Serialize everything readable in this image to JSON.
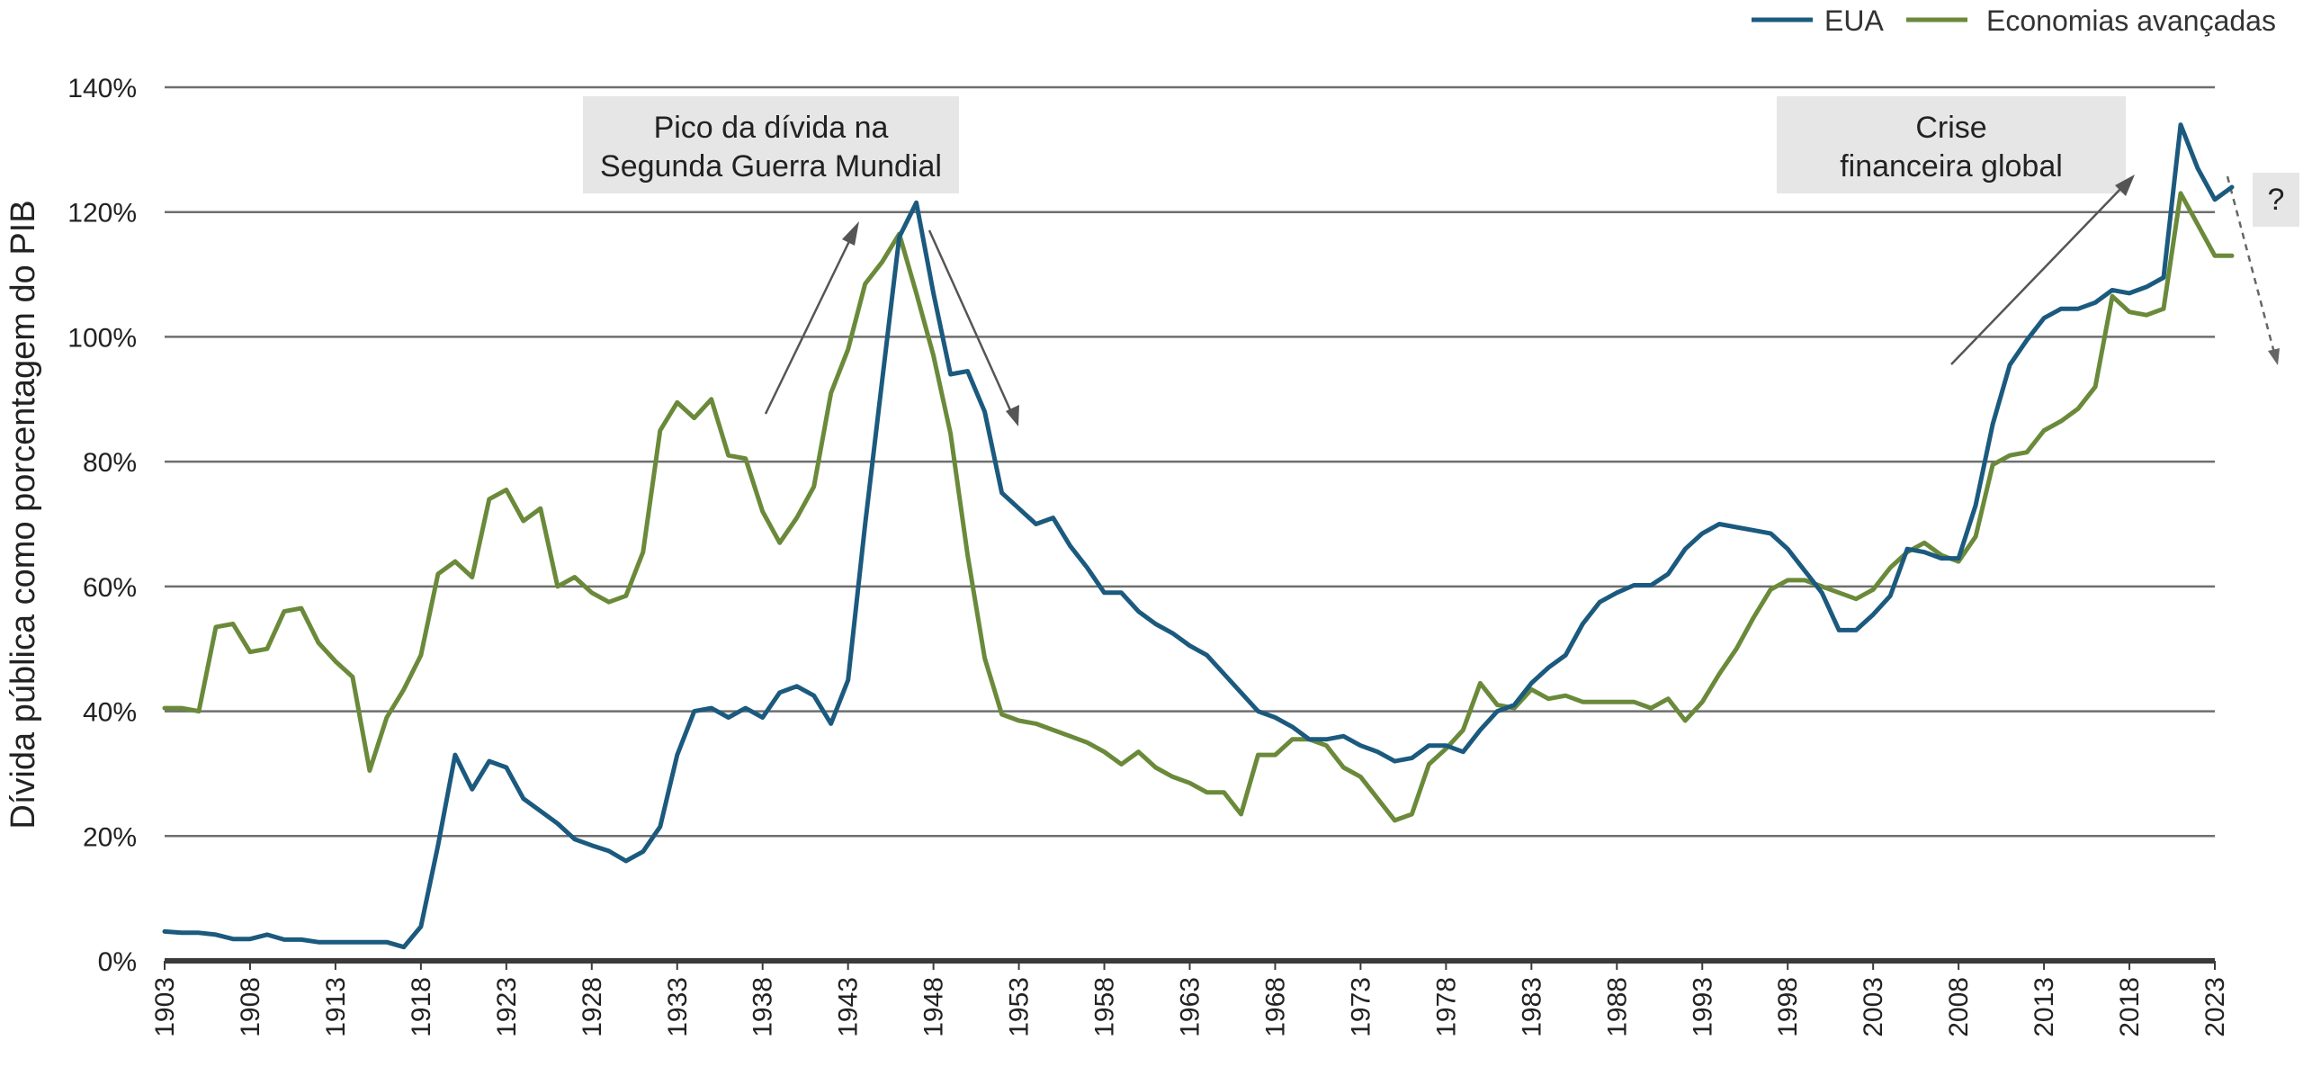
{
  "chart_data": {
    "type": "line",
    "ylabel": "Dívida pública como porcentagem do PIB",
    "xlabel": "",
    "ylim": [
      0,
      140
    ],
    "xlim": [
      1903,
      2023
    ],
    "y_ticks": [
      0,
      20,
      40,
      60,
      80,
      100,
      120,
      140
    ],
    "y_tick_labels": [
      "0%",
      "20%",
      "40%",
      "60%",
      "80%",
      "100%",
      "120%",
      "140%"
    ],
    "x_ticks": [
      1903,
      1908,
      1913,
      1918,
      1923,
      1928,
      1933,
      1938,
      1943,
      1948,
      1953,
      1958,
      1963,
      1968,
      1973,
      1978,
      1983,
      1988,
      1993,
      1998,
      2003,
      2008,
      2013,
      2018,
      2023
    ],
    "grid": "horizontal",
    "legend_position": "top-right",
    "series": [
      {
        "name": "EUA",
        "color": "#1b5a7e",
        "points": [
          [
            1903,
            4.7
          ],
          [
            1904,
            4.5
          ],
          [
            1905,
            4.5
          ],
          [
            1906,
            4.2
          ],
          [
            1907,
            3.5
          ],
          [
            1908,
            3.5
          ],
          [
            1909,
            4.2
          ],
          [
            1910,
            3.4
          ],
          [
            1911,
            3.4
          ],
          [
            1912,
            3.0
          ],
          [
            1913,
            3.0
          ],
          [
            1914,
            3.0
          ],
          [
            1915,
            3.0
          ],
          [
            1916,
            3.0
          ],
          [
            1917,
            2.2
          ],
          [
            1918,
            5.5
          ],
          [
            1919,
            18.5
          ],
          [
            1920,
            33.0
          ],
          [
            1921,
            27.5
          ],
          [
            1922,
            32.0
          ],
          [
            1923,
            31.0
          ],
          [
            1924,
            26.0
          ],
          [
            1925,
            24.0
          ],
          [
            1926,
            22.0
          ],
          [
            1927,
            19.5
          ],
          [
            1928,
            18.5
          ],
          [
            1929,
            17.6
          ],
          [
            1930,
            16.0
          ],
          [
            1931,
            17.5
          ],
          [
            1932,
            21.5
          ],
          [
            1933,
            33.0
          ],
          [
            1934,
            40.0
          ],
          [
            1935,
            40.5
          ],
          [
            1936,
            39.0
          ],
          [
            1937,
            40.5
          ],
          [
            1938,
            39.0
          ],
          [
            1939,
            43.0
          ],
          [
            1940,
            44.0
          ],
          [
            1941,
            42.5
          ],
          [
            1942,
            38.0
          ],
          [
            1943,
            45.0
          ],
          [
            1944,
            70.0
          ],
          [
            1945,
            93.0
          ],
          [
            1946,
            116.0
          ],
          [
            1947,
            121.5
          ],
          [
            1948,
            107.0
          ],
          [
            1949,
            94.0
          ],
          [
            1950,
            94.5
          ],
          [
            1951,
            88.0
          ],
          [
            1952,
            75.0
          ],
          [
            1953,
            72.5
          ],
          [
            1954,
            70.0
          ],
          [
            1955,
            71.0
          ],
          [
            1956,
            66.5
          ],
          [
            1957,
            63.0
          ],
          [
            1958,
            59.0
          ],
          [
            1959,
            59.0
          ],
          [
            1960,
            56.0
          ],
          [
            1961,
            54.0
          ],
          [
            1962,
            52.5
          ],
          [
            1963,
            50.5
          ],
          [
            1964,
            49.0
          ],
          [
            1965,
            46.0
          ],
          [
            1966,
            43.0
          ],
          [
            1967,
            40.0
          ],
          [
            1968,
            39.0
          ],
          [
            1969,
            37.5
          ],
          [
            1970,
            35.5
          ],
          [
            1971,
            35.5
          ],
          [
            1972,
            36.0
          ],
          [
            1973,
            34.5
          ],
          [
            1974,
            33.5
          ],
          [
            1975,
            32.0
          ],
          [
            1976,
            32.5
          ],
          [
            1977,
            34.5
          ],
          [
            1978,
            34.5
          ],
          [
            1979,
            33.5
          ],
          [
            1980,
            37.0
          ],
          [
            1981,
            40.0
          ],
          [
            1982,
            41.0
          ],
          [
            1983,
            44.5
          ],
          [
            1984,
            47.0
          ],
          [
            1985,
            49.0
          ],
          [
            1986,
            54.0
          ],
          [
            1987,
            57.5
          ],
          [
            1988,
            59.0
          ],
          [
            1989,
            60.2
          ],
          [
            1990,
            60.2
          ],
          [
            1991,
            62.0
          ],
          [
            1992,
            66.0
          ],
          [
            1993,
            68.5
          ],
          [
            1994,
            70.0
          ],
          [
            1995,
            69.5
          ],
          [
            1996,
            69.0
          ],
          [
            1997,
            68.5
          ],
          [
            1998,
            66.0
          ],
          [
            1999,
            62.5
          ],
          [
            2000,
            59.0
          ],
          [
            2001,
            53.0
          ],
          [
            2002,
            53.0
          ],
          [
            2003,
            55.5
          ],
          [
            2004,
            58.5
          ],
          [
            2005,
            66.0
          ],
          [
            2006,
            65.5
          ],
          [
            2007,
            64.5
          ],
          [
            2008,
            64.5
          ],
          [
            2009,
            73.0
          ],
          [
            2010,
            86.0
          ],
          [
            2011,
            95.5
          ],
          [
            2012,
            99.5
          ],
          [
            2013,
            103.0
          ],
          [
            2014,
            104.5
          ],
          [
            2015,
            104.5
          ],
          [
            2016,
            105.5
          ],
          [
            2017,
            107.5
          ],
          [
            2018,
            107.0
          ],
          [
            2019,
            108.0
          ],
          [
            2020,
            109.5
          ],
          [
            2021,
            134.0
          ],
          [
            2022,
            127.0
          ],
          [
            2023,
            122.0
          ],
          [
            2024,
            124.0
          ]
        ]
      },
      {
        "name": "Economias avançadas",
        "color": "#6a8a3a",
        "points": [
          [
            1903,
            40.5
          ],
          [
            1904,
            40.5
          ],
          [
            1905,
            40.0
          ],
          [
            1906,
            53.5
          ],
          [
            1907,
            54.0
          ],
          [
            1908,
            49.5
          ],
          [
            1909,
            50.0
          ],
          [
            1910,
            56.0
          ],
          [
            1911,
            56.5
          ],
          [
            1912,
            51.0
          ],
          [
            1913,
            48.0
          ],
          [
            1914,
            45.5
          ],
          [
            1915,
            30.5
          ],
          [
            1916,
            39.0
          ],
          [
            1917,
            43.5
          ],
          [
            1918,
            49.0
          ],
          [
            1919,
            62.0
          ],
          [
            1920,
            64.0
          ],
          [
            1921,
            61.5
          ],
          [
            1922,
            74.0
          ],
          [
            1923,
            75.5
          ],
          [
            1924,
            70.5
          ],
          [
            1925,
            72.5
          ],
          [
            1926,
            60.0
          ],
          [
            1927,
            61.5
          ],
          [
            1928,
            59.0
          ],
          [
            1929,
            57.5
          ],
          [
            1930,
            58.5
          ],
          [
            1931,
            65.5
          ],
          [
            1932,
            85.0
          ],
          [
            1933,
            89.5
          ],
          [
            1934,
            87.0
          ],
          [
            1935,
            90.0
          ],
          [
            1936,
            81.0
          ],
          [
            1937,
            80.5
          ],
          [
            1938,
            72.0
          ],
          [
            1939,
            67.0
          ],
          [
            1940,
            71.0
          ],
          [
            1941,
            76.0
          ],
          [
            1942,
            91.0
          ],
          [
            1943,
            98.0
          ],
          [
            1944,
            108.5
          ],
          [
            1945,
            112.0
          ],
          [
            1946,
            116.5
          ],
          [
            1947,
            107.0
          ],
          [
            1948,
            97.0
          ],
          [
            1949,
            84.5
          ],
          [
            1950,
            65.0
          ],
          [
            1951,
            48.5
          ],
          [
            1952,
            39.5
          ],
          [
            1953,
            38.5
          ],
          [
            1954,
            38.0
          ],
          [
            1955,
            37.0
          ],
          [
            1956,
            36.0
          ],
          [
            1957,
            35.0
          ],
          [
            1958,
            33.5
          ],
          [
            1959,
            31.5
          ],
          [
            1960,
            33.5
          ],
          [
            1961,
            31.0
          ],
          [
            1962,
            29.5
          ],
          [
            1963,
            28.5
          ],
          [
            1964,
            27.0
          ],
          [
            1965,
            27.0
          ],
          [
            1966,
            23.5
          ],
          [
            1967,
            33.0
          ],
          [
            1968,
            33.0
          ],
          [
            1969,
            35.5
          ],
          [
            1970,
            35.5
          ],
          [
            1971,
            34.5
          ],
          [
            1972,
            31.0
          ],
          [
            1973,
            29.5
          ],
          [
            1974,
            26.0
          ],
          [
            1975,
            22.5
          ],
          [
            1976,
            23.5
          ],
          [
            1977,
            31.5
          ],
          [
            1978,
            34.0
          ],
          [
            1979,
            37.0
          ],
          [
            1980,
            44.5
          ],
          [
            1981,
            41.0
          ],
          [
            1982,
            40.5
          ],
          [
            1983,
            43.5
          ],
          [
            1984,
            42.0
          ],
          [
            1985,
            42.5
          ],
          [
            1986,
            41.5
          ],
          [
            1987,
            41.5
          ],
          [
            1988,
            41.5
          ],
          [
            1989,
            41.5
          ],
          [
            1990,
            40.5
          ],
          [
            1991,
            42.0
          ],
          [
            1992,
            38.5
          ],
          [
            1993,
            41.5
          ],
          [
            1994,
            46.0
          ],
          [
            1995,
            50.0
          ],
          [
            1996,
            55.0
          ],
          [
            1997,
            59.5
          ],
          [
            1998,
            61.0
          ],
          [
            1999,
            61.0
          ],
          [
            2000,
            60.0
          ],
          [
            2001,
            59.0
          ],
          [
            2002,
            58.0
          ],
          [
            2003,
            59.5
          ],
          [
            2004,
            63.0
          ],
          [
            2005,
            65.5
          ],
          [
            2006,
            67.0
          ],
          [
            2007,
            65.0
          ],
          [
            2008,
            64.0
          ],
          [
            2009,
            68.0
          ],
          [
            2010,
            79.5
          ],
          [
            2011,
            81.0
          ],
          [
            2012,
            81.5
          ],
          [
            2013,
            85.0
          ],
          [
            2014,
            86.5
          ],
          [
            2015,
            88.5
          ],
          [
            2016,
            92.0
          ],
          [
            2017,
            106.5
          ],
          [
            2018,
            104.0
          ],
          [
            2019,
            103.5
          ],
          [
            2020,
            104.5
          ],
          [
            2021,
            123.0
          ],
          [
            2022,
            118.0
          ],
          [
            2023,
            113.0
          ],
          [
            2024,
            113.0
          ]
        ]
      }
    ],
    "annotations": [
      {
        "lines": [
          "Pico da dívida na",
          "Segunda Guerra Mundial"
        ]
      },
      {
        "lines": [
          "Crise",
          "financeira global"
        ]
      },
      {
        "lines": [
          "?"
        ]
      }
    ]
  }
}
